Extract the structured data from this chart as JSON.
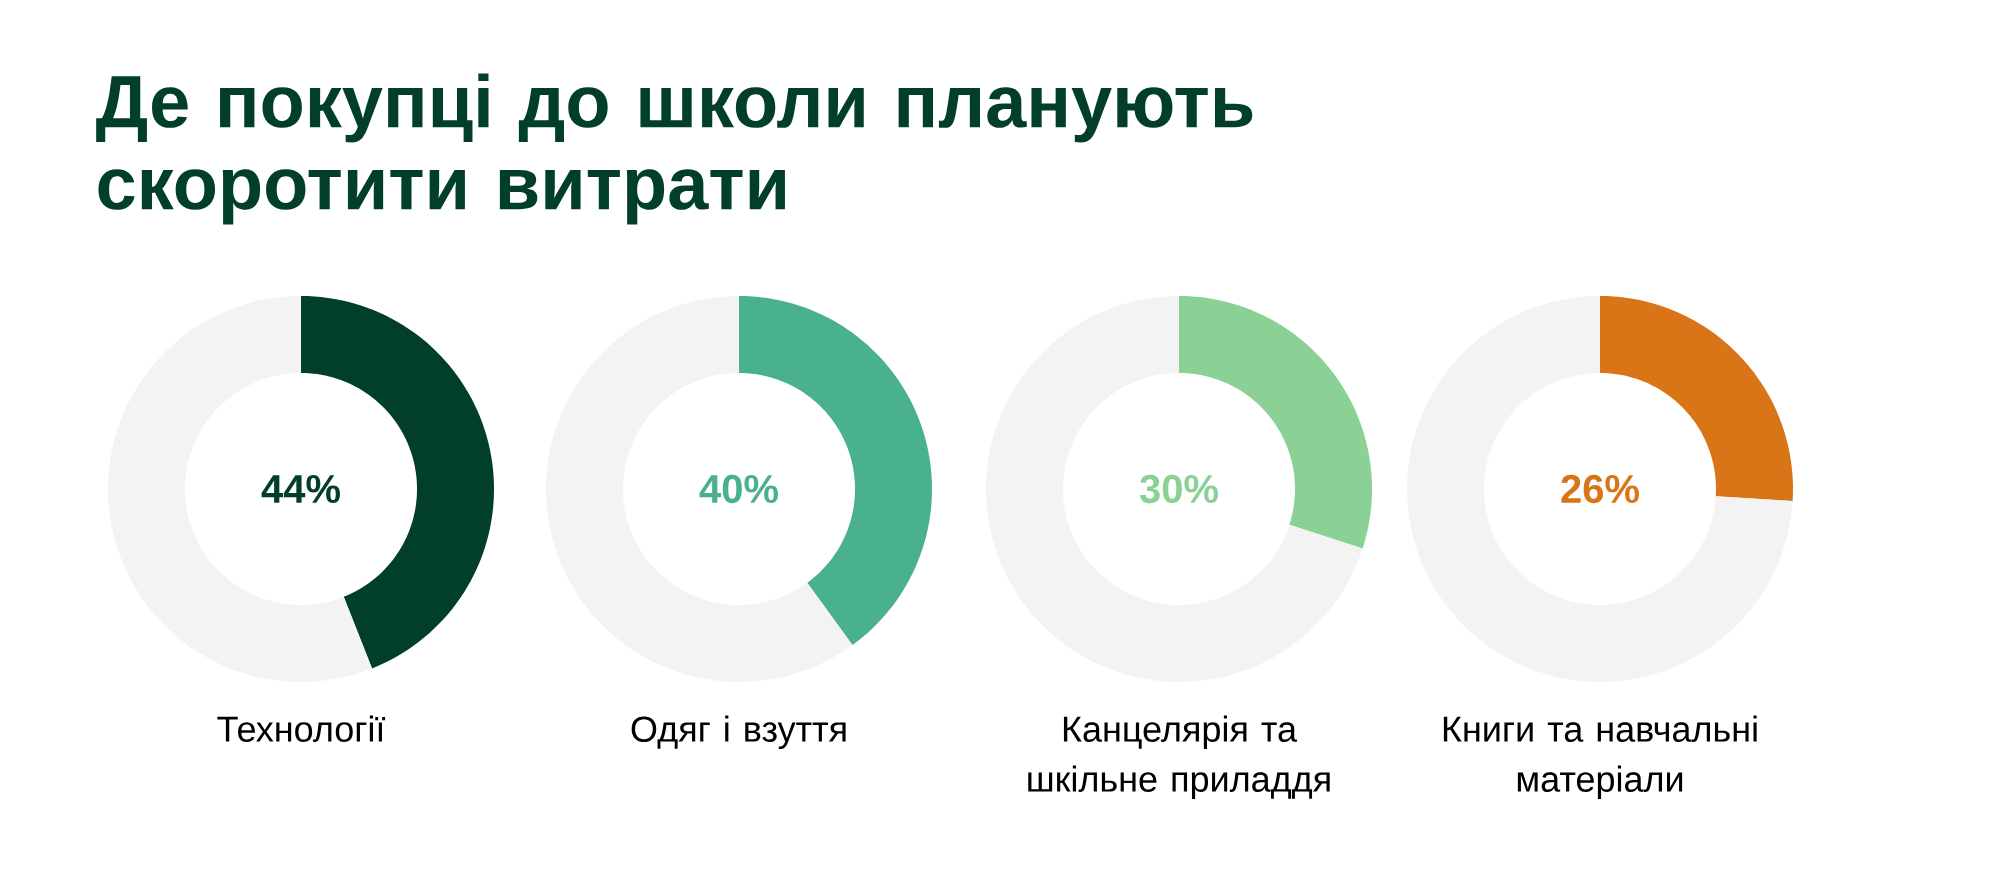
{
  "chart_data": [
    {
      "type": "other",
      "title": "Де покупці до школи планують скоротити витрати"
    },
    {
      "type": "donut",
      "title": "Технології",
      "categories": [
        null,
        null
      ],
      "values": [
        44,
        56
      ],
      "colors": [
        "#023f2a",
        "#f3f3f3"
      ],
      "annotations": [
        "44%"
      ]
    },
    {
      "type": "donut",
      "title": "Одяг і взуття",
      "categories": [
        null,
        null
      ],
      "values": [
        40,
        60
      ],
      "colors": [
        "#4ab18d",
        "#f3f3f3"
      ],
      "annotations": [
        "40%"
      ]
    },
    {
      "type": "donut",
      "title": "Канцелярія та шкільне приладдя",
      "categories": [
        null,
        null
      ],
      "values": [
        30,
        70
      ],
      "colors": [
        "#8bd095",
        "#f3f3f3"
      ],
      "annotations": [
        "30%"
      ]
    },
    {
      "type": "donut",
      "title": "Книги та навчальні матеріали",
      "categories": [
        null,
        null
      ],
      "values": [
        26,
        74
      ],
      "colors": [
        "#d97516",
        "#f3f3f3"
      ],
      "annotations": [
        "26%"
      ]
    }
  ]
}
